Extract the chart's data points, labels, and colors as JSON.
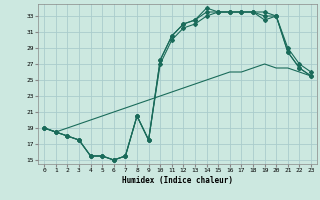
{
  "xlabel": "Humidex (Indice chaleur)",
  "bg_color": "#cce8e0",
  "grid_color": "#aacccc",
  "line_color": "#1a6b5a",
  "xlim": [
    -0.5,
    23.5
  ],
  "ylim": [
    14.5,
    34.5
  ],
  "xticks": [
    0,
    1,
    2,
    3,
    4,
    5,
    6,
    7,
    8,
    9,
    10,
    11,
    12,
    13,
    14,
    15,
    16,
    17,
    18,
    19,
    20,
    21,
    22,
    23
  ],
  "yticks": [
    15,
    17,
    19,
    21,
    23,
    25,
    27,
    29,
    31,
    33
  ],
  "series1_x": [
    0,
    1,
    2,
    3,
    4,
    5,
    6,
    7,
    8,
    9,
    10,
    11,
    12,
    13,
    14,
    15,
    16,
    17,
    18,
    19,
    20,
    21,
    22,
    23
  ],
  "series1_y": [
    19,
    18.5,
    18,
    17.5,
    15.5,
    15.5,
    15,
    15.5,
    20.5,
    17.5,
    27.5,
    30.5,
    32,
    32.5,
    34,
    33.5,
    33.5,
    33.5,
    33.5,
    33.5,
    33,
    29,
    27,
    26
  ],
  "series2_x": [
    0,
    1,
    2,
    3,
    4,
    5,
    6,
    7,
    8,
    9,
    10,
    11,
    12,
    13,
    14,
    15,
    16,
    17,
    18,
    19,
    20,
    21,
    22,
    23
  ],
  "series2_y": [
    19,
    18.5,
    18,
    17.5,
    15.5,
    15.5,
    15,
    15.5,
    20.5,
    17.5,
    27.5,
    30.5,
    32,
    32.5,
    33.5,
    33.5,
    33.5,
    33.5,
    33.5,
    33,
    33,
    28.5,
    26.5,
    25.5
  ],
  "series3_x": [
    0,
    1,
    2,
    3,
    4,
    5,
    6,
    7,
    8,
    9,
    10,
    11,
    12,
    13,
    14,
    15,
    16,
    17,
    18,
    19,
    20,
    21,
    22,
    23
  ],
  "series3_y": [
    19,
    18.5,
    18,
    17.5,
    15.5,
    15.5,
    15,
    15.5,
    20.5,
    17.5,
    27,
    30,
    31.5,
    32,
    33.0,
    33.5,
    33.5,
    33.5,
    33.5,
    32.5,
    33,
    28.5,
    26.5,
    25.5
  ],
  "series4_x": [
    0,
    1,
    2,
    3,
    4,
    5,
    6,
    7,
    8,
    9,
    10,
    11,
    12,
    13,
    14,
    15,
    16,
    17,
    18,
    19,
    20,
    21,
    22,
    23
  ],
  "series4_y": [
    19,
    18.5,
    19,
    19.5,
    20,
    20.5,
    21,
    21.5,
    22,
    22.5,
    23,
    23.5,
    24,
    24.5,
    25,
    25.5,
    26,
    26,
    26.5,
    27,
    26.5,
    26.5,
    26,
    25.5
  ]
}
